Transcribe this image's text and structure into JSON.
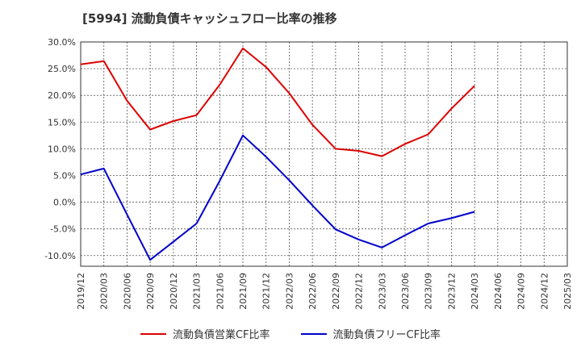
{
  "title": "[5994]  流動負債キャッシュフロー比率の推移",
  "chart_data": {
    "type": "line",
    "title": "[5994]  流動負債キャッシュフロー比率の推移",
    "xlabel": "",
    "ylabel": "",
    "categories": [
      "2019/12",
      "2020/03",
      "2020/06",
      "2020/09",
      "2020/12",
      "2021/03",
      "2021/06",
      "2021/09",
      "2021/12",
      "2022/03",
      "2022/06",
      "2022/09",
      "2022/12",
      "2023/03",
      "2023/06",
      "2023/09",
      "2023/12",
      "2024/03",
      "2024/06",
      "2024/09",
      "2024/12",
      "2025/03"
    ],
    "ylim": [
      -12,
      30
    ],
    "yticks": [
      30,
      25,
      20,
      15,
      10,
      5,
      0,
      -5,
      -10
    ],
    "ytick_labels": [
      "30.0%",
      "25.0%",
      "20.0%",
      "15.0%",
      "10.0%",
      "5.0%",
      "0.0%",
      "-5.0%",
      "-10.0%"
    ],
    "grid": true,
    "legend_position": "bottom",
    "series": [
      {
        "name": "流動負債営業CF比率",
        "color": "#dd0000",
        "values": [
          25.8,
          26.4,
          19.0,
          13.6,
          15.2,
          16.3,
          22.0,
          28.8,
          25.3,
          20.4,
          14.5,
          10.0,
          9.6,
          8.6,
          10.9,
          12.7,
          17.5,
          21.8,
          null,
          null,
          null,
          null
        ]
      },
      {
        "name": "流動負債フリーCF比率",
        "color": "#0000cc",
        "values": [
          5.2,
          6.3,
          -2.3,
          -10.8,
          -7.4,
          -4.0,
          4.0,
          12.5,
          8.5,
          4.1,
          -0.6,
          -5.1,
          -7.0,
          -8.5,
          -6.2,
          -4.0,
          -3.0,
          -1.8,
          null,
          null,
          null,
          null
        ]
      }
    ]
  }
}
